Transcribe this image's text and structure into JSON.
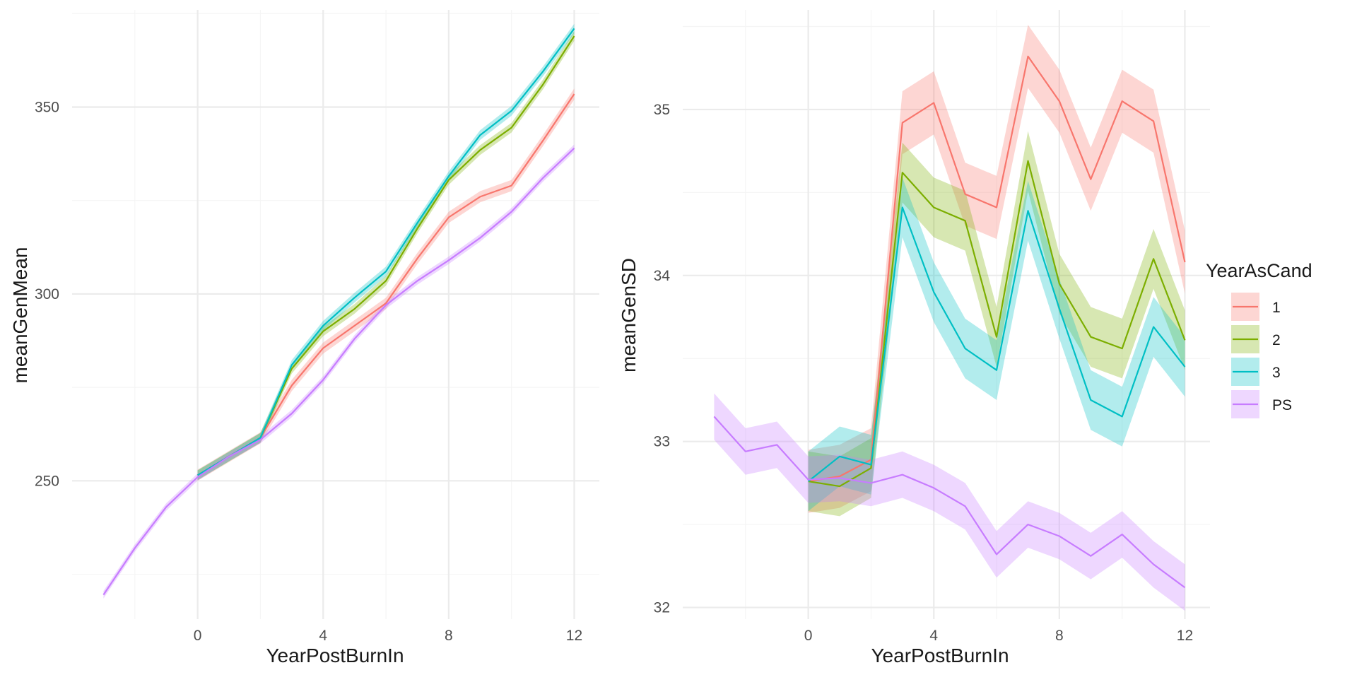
{
  "chart_data": [
    {
      "type": "line",
      "panel": "left",
      "xlabel": "YearPostBurnIn",
      "ylabel": "meanGenMean",
      "xlim": [
        -4,
        12.8
      ],
      "ylim": [
        213,
        376
      ],
      "x_ticks": [
        0,
        4,
        8,
        12
      ],
      "y_ticks": [
        250,
        300,
        350
      ],
      "grid": true,
      "series": [
        {
          "name": "1",
          "points": [
            [
              0,
              251.5
            ],
            [
              1,
              256.5
            ],
            [
              2,
              261.5
            ],
            [
              3,
              275.5
            ],
            [
              4,
              285.5
            ],
            [
              5,
              291.5
            ],
            [
              6,
              297.5
            ],
            [
              7,
              309.5
            ],
            [
              8,
              320.5
            ],
            [
              9,
              326
            ],
            [
              10,
              329
            ],
            [
              11,
              341
            ],
            [
              12,
              353.5
            ]
          ],
          "band": 1.5
        },
        {
          "name": "2",
          "points": [
            [
              0,
              251.5
            ],
            [
              1,
              256.5
            ],
            [
              2,
              261.5
            ],
            [
              3,
              280
            ],
            [
              4,
              290
            ],
            [
              5,
              296
            ],
            [
              6,
              303.5
            ],
            [
              7,
              317.5
            ],
            [
              8,
              330.5
            ],
            [
              9,
              338.5
            ],
            [
              10,
              344.5
            ],
            [
              11,
              356
            ],
            [
              12,
              369
            ]
          ],
          "band": 1.3
        },
        {
          "name": "3",
          "points": [
            [
              0,
              251.5
            ],
            [
              1,
              256.5
            ],
            [
              2,
              261.5
            ],
            [
              3,
              281
            ],
            [
              4,
              291.5
            ],
            [
              5,
              299
            ],
            [
              6,
              306
            ],
            [
              7,
              319
            ],
            [
              8,
              331.5
            ],
            [
              9,
              342.5
            ],
            [
              10,
              349
            ],
            [
              11,
              359.5
            ],
            [
              12,
              371
            ]
          ],
          "band": 1.3
        },
        {
          "name": "PS",
          "points": [
            [
              -3,
              219.5
            ],
            [
              -2,
              232
            ],
            [
              -1,
              243
            ],
            [
              0,
              251
            ],
            [
              1,
              256.5
            ],
            [
              2,
              261
            ],
            [
              3,
              268
            ],
            [
              4,
              277
            ],
            [
              5,
              288
            ],
            [
              6,
              297
            ],
            [
              7,
              303.5
            ],
            [
              8,
              309
            ],
            [
              9,
              315
            ],
            [
              10,
              322
            ],
            [
              11,
              331
            ],
            [
              12,
              339
            ]
          ],
          "band": 1.0
        }
      ]
    },
    {
      "type": "line",
      "panel": "right",
      "xlabel": "YearPostBurnIn",
      "ylabel": "meanGenSD",
      "xlim": [
        -4,
        12.8
      ],
      "ylim": [
        31.93,
        35.6
      ],
      "x_ticks": [
        0,
        4,
        8,
        12
      ],
      "y_ticks": [
        32,
        33,
        34,
        35
      ],
      "grid": true,
      "series": [
        {
          "name": "1",
          "points": [
            [
              0,
              32.76
            ],
            [
              1,
              32.79
            ],
            [
              2,
              32.89
            ],
            [
              3,
              34.92
            ],
            [
              4,
              35.04
            ],
            [
              5,
              34.49
            ],
            [
              6,
              34.41
            ],
            [
              7,
              35.32
            ],
            [
              8,
              35.05
            ],
            [
              9,
              34.58
            ],
            [
              10,
              35.05
            ],
            [
              11,
              34.93
            ],
            [
              12,
              34.08
            ]
          ],
          "band": 0.19
        },
        {
          "name": "2",
          "points": [
            [
              0,
              32.76
            ],
            [
              1,
              32.73
            ],
            [
              2,
              32.84
            ],
            [
              3,
              34.62
            ],
            [
              4,
              34.41
            ],
            [
              5,
              34.33
            ],
            [
              6,
              33.63
            ],
            [
              7,
              34.69
            ],
            [
              8,
              33.95
            ],
            [
              9,
              33.63
            ],
            [
              10,
              33.56
            ],
            [
              11,
              34.1
            ],
            [
              12,
              33.61
            ]
          ],
          "band": 0.18
        },
        {
          "name": "3",
          "points": [
            [
              0,
              32.76
            ],
            [
              1,
              32.91
            ],
            [
              2,
              32.86
            ],
            [
              3,
              34.41
            ],
            [
              4,
              33.9
            ],
            [
              5,
              33.56
            ],
            [
              6,
              33.43
            ],
            [
              7,
              34.39
            ],
            [
              8,
              33.8
            ],
            [
              9,
              33.25
            ],
            [
              10,
              33.15
            ],
            [
              11,
              33.69
            ],
            [
              12,
              33.45
            ]
          ],
          "band": 0.18
        },
        {
          "name": "PS",
          "points": [
            [
              -3,
              33.15
            ],
            [
              -2,
              32.94
            ],
            [
              -1,
              32.98
            ],
            [
              0,
              32.77
            ],
            [
              1,
              32.78
            ],
            [
              2,
              32.75
            ],
            [
              3,
              32.8
            ],
            [
              4,
              32.72
            ],
            [
              5,
              32.61
            ],
            [
              6,
              32.32
            ],
            [
              7,
              32.5
            ],
            [
              8,
              32.43
            ],
            [
              9,
              32.31
            ],
            [
              10,
              32.44
            ],
            [
              11,
              32.26
            ],
            [
              12,
              32.12
            ]
          ],
          "band": 0.14
        }
      ]
    }
  ],
  "legend": {
    "title": "YearAsCand",
    "placement": "right",
    "items": [
      {
        "label": "1",
        "color": "#F8766D"
      },
      {
        "label": "2",
        "color": "#7CAE00"
      },
      {
        "label": "3",
        "color": "#00BFC4"
      },
      {
        "label": "PS",
        "color": "#C77CFF"
      }
    ]
  },
  "colors": {
    "1": "#F8766D",
    "2": "#7CAE00",
    "3": "#00BFC4",
    "PS": "#C77CFF",
    "grid_major": "#ebebeb",
    "grid_minor": "#f5f5f5"
  }
}
